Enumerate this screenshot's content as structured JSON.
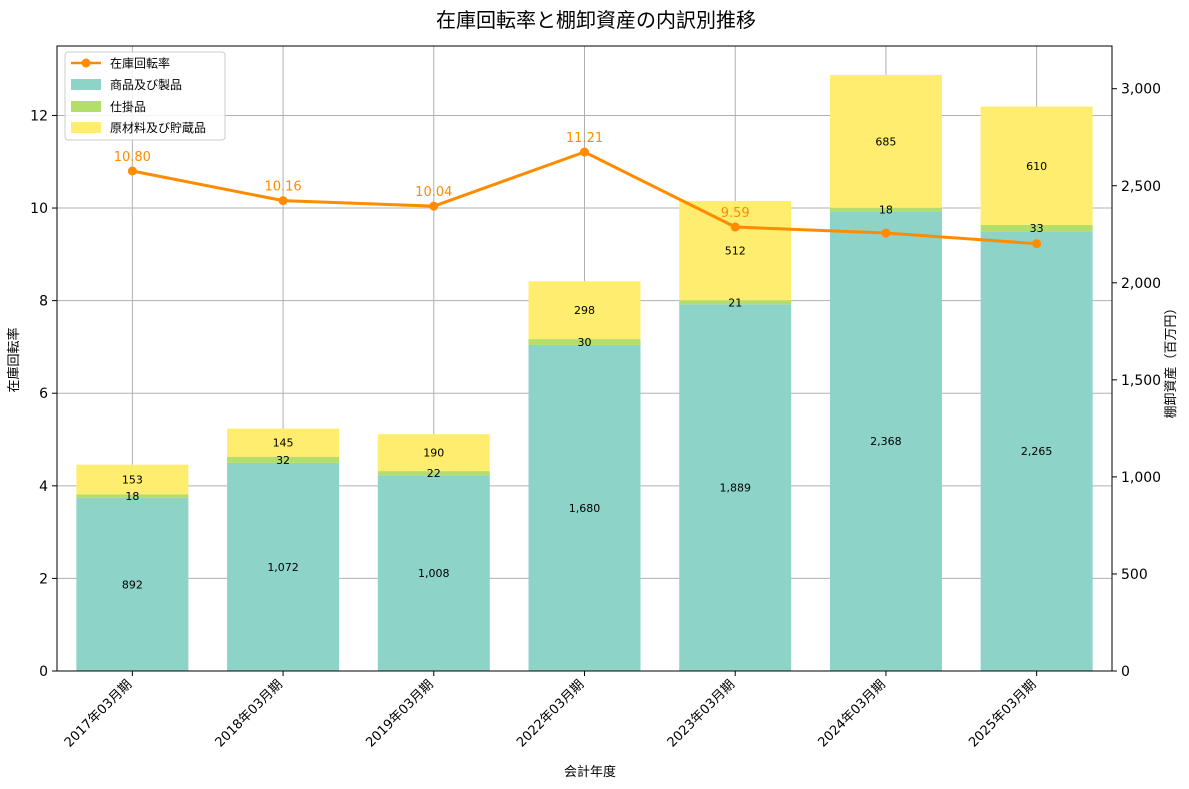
{
  "chart_data": {
    "type": "bar+line",
    "title": "在庫回転率と棚卸資産の内訳別推移",
    "xlabel": "会計年度",
    "ylabel_left": "在庫回転率",
    "ylabel_right": "棚卸資産（百万円）",
    "grid": true,
    "legend_position": "top-left",
    "categories": [
      "2017年03月期",
      "2018年03月期",
      "2019年03月期",
      "2022年03月期",
      "2023年03月期",
      "2024年03月期",
      "2025年03月期"
    ],
    "left_axis": {
      "range": [
        0,
        13.5
      ],
      "ticks": [
        0,
        2,
        4,
        6,
        8,
        10,
        12
      ],
      "tick_labels": [
        "0",
        "2",
        "4",
        "6",
        "8",
        "10",
        "12"
      ]
    },
    "right_axis": {
      "range": [
        0,
        3220
      ],
      "ticks": [
        0,
        500,
        1000,
        1500,
        2000,
        2500,
        3000
      ],
      "tick_labels": [
        "0",
        "500",
        "1,000",
        "1,500",
        "2,000",
        "2,500",
        "3,000"
      ]
    },
    "bar_series": [
      {
        "name": "商品及び製品",
        "color": "#8dd3c7",
        "values": [
          892,
          1072,
          1008,
          1680,
          1889,
          2368,
          2265
        ],
        "labels": [
          "892",
          "1,072",
          "1,008",
          "1,680",
          "1,889",
          "2,368",
          "2,265"
        ]
      },
      {
        "name": "仕掛品",
        "color": "#b3de69",
        "values": [
          18,
          32,
          22,
          30,
          21,
          18,
          33
        ],
        "labels": [
          "18",
          "32",
          "22",
          "30",
          "21",
          "18",
          "33"
        ]
      },
      {
        "name": "原材料及び貯蔵品",
        "color": "#ffed6f",
        "values": [
          153,
          145,
          190,
          298,
          512,
          685,
          610
        ],
        "labels": [
          "153",
          "145",
          "190",
          "298",
          "512",
          "685",
          "610"
        ]
      }
    ],
    "line_series": {
      "name": "在庫回転率",
      "color": "#ff8c00",
      "values": [
        10.8,
        10.16,
        10.04,
        11.21,
        9.59,
        9.46,
        9.23
      ],
      "labels": [
        "10.80",
        "10.16",
        "10.04",
        "11.21",
        "9.59",
        "",
        ""
      ]
    }
  }
}
